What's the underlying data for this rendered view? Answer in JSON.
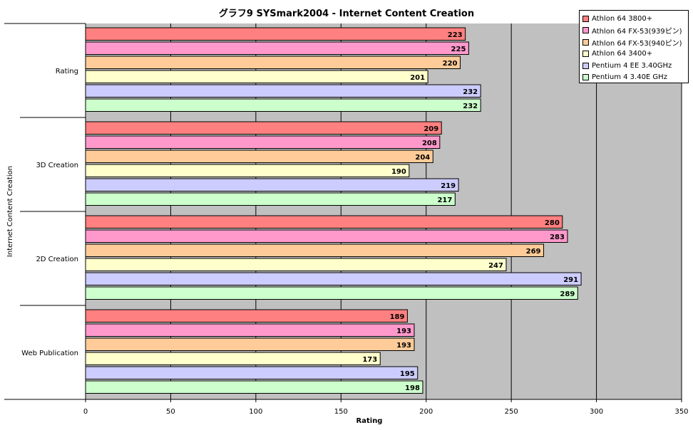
{
  "chart_data": {
    "type": "bar",
    "orientation": "horizontal",
    "title": "グラフ9  SYSmark2004 - Internet Content Creation",
    "xlabel": "Rating",
    "ylabel": "Internet Content Creation",
    "xlim": [
      0,
      350
    ],
    "x_ticks": [
      0,
      50,
      100,
      150,
      200,
      250,
      300,
      350
    ],
    "grid": true,
    "legend_position": "top-right",
    "categories": [
      "Rating",
      "3D Creation",
      "2D Creation",
      "Web Publication"
    ],
    "series": [
      {
        "name": "Athlon 64 3800+",
        "color": "#ff8080",
        "values": [
          223,
          209,
          280,
          189
        ]
      },
      {
        "name": "Athlon 64 FX-53(939ピン)",
        "color": "#ff99cc",
        "values": [
          225,
          208,
          283,
          193
        ]
      },
      {
        "name": "Athlon 64 FX-53(940ピン)",
        "color": "#ffcc99",
        "values": [
          220,
          204,
          269,
          193
        ]
      },
      {
        "name": "Athlon 64 3400+",
        "color": "#ffffcc",
        "values": [
          201,
          190,
          247,
          173
        ]
      },
      {
        "name": "Pentium 4 EE 3.40GHz",
        "color": "#ccccff",
        "values": [
          232,
          219,
          291,
          195
        ]
      },
      {
        "name": "Pentium 4 3.40E GHz",
        "color": "#ccffcc",
        "values": [
          232,
          217,
          289,
          198
        ]
      }
    ]
  }
}
